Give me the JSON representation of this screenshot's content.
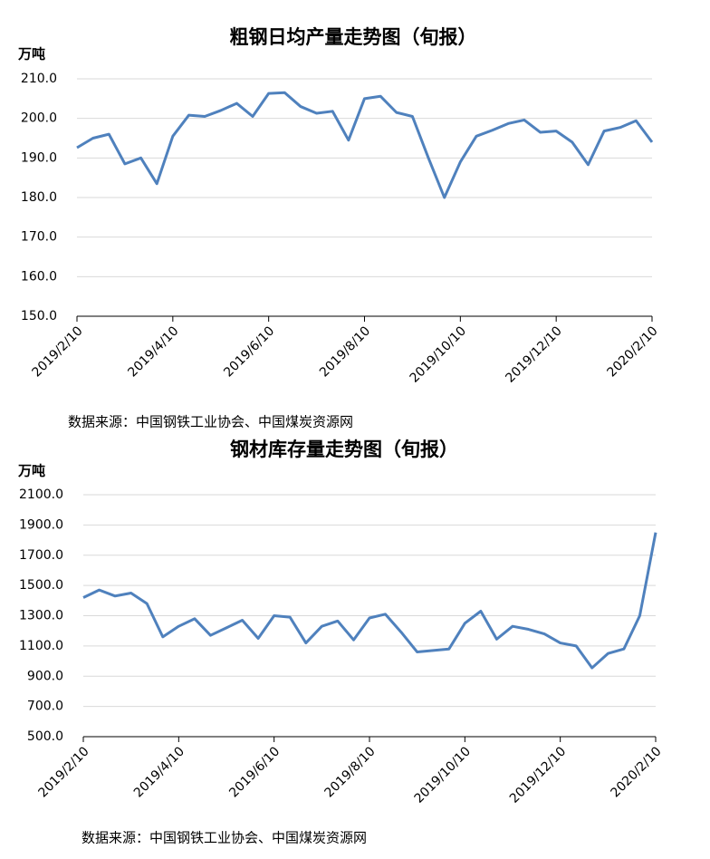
{
  "chart_data": [
    {
      "type": "line",
      "title": "粗钢日均产量走势图（旬报）",
      "y_label": "万吨",
      "source": "数据来源：中国钢铁工业协会、中国煤炭资源网",
      "categories": [
        "2019/2/10",
        null,
        null,
        null,
        null,
        null,
        "2019/4/10",
        null,
        null,
        null,
        null,
        null,
        "2019/6/10",
        null,
        null,
        null,
        null,
        null,
        "2019/8/10",
        null,
        null,
        null,
        null,
        null,
        "2019/10/10",
        null,
        null,
        null,
        null,
        null,
        "2019/12/10",
        null,
        null,
        null,
        null,
        null,
        "2020/2/10"
      ],
      "series": [
        {
          "color": "#4f81bd",
          "values": [
            192.6,
            195,
            196,
            188.5,
            190,
            183.5,
            195.5,
            200.8,
            200.5,
            202,
            203.8,
            200.5,
            206.3,
            206.5,
            203,
            201.3,
            201.8,
            194.5,
            205,
            205.6,
            201.5,
            200.5,
            190,
            180,
            189,
            195.5,
            197,
            198.7,
            199.6,
            196.5,
            196.8,
            194,
            188.3,
            196.8,
            197.7,
            199.4,
            194
          ]
        }
      ],
      "ylim": [
        150,
        210
      ],
      "yticks": [
        {
          "value": 150,
          "label": "150.0"
        },
        {
          "value": 160,
          "label": "160.0"
        },
        {
          "value": 170,
          "label": "170.0"
        },
        {
          "value": 180,
          "label": "180.0"
        },
        {
          "value": 190,
          "label": "190.0"
        },
        {
          "value": 200,
          "label": "200.0"
        },
        {
          "value": 210,
          "label": "210.0"
        }
      ],
      "grid": true
    },
    {
      "type": "line",
      "title": "钢材库存量走势图（旬报）",
      "y_label": "万吨",
      "source": "数据来源：中国钢铁工业协会、中国煤炭资源网",
      "categories": [
        "2019/2/10",
        null,
        null,
        null,
        null,
        null,
        "2019/4/10",
        null,
        null,
        null,
        null,
        null,
        "2019/6/10",
        null,
        null,
        null,
        null,
        null,
        "2019/8/10",
        null,
        null,
        null,
        null,
        null,
        "2019/10/10",
        null,
        null,
        null,
        null,
        null,
        "2019/12/10",
        null,
        null,
        null,
        null,
        null,
        "2020/2/10"
      ],
      "series": [
        {
          "color": "#4f81bd",
          "values": [
            1420,
            1470,
            1430,
            1450,
            1380,
            1160,
            1230,
            1280,
            1170,
            1220,
            1270,
            1150,
            1300,
            1290,
            1120,
            1230,
            1265,
            1140,
            1285,
            1310,
            1190,
            1060,
            1070,
            1080,
            1250,
            1330,
            1145,
            1230,
            1210,
            1180,
            1120,
            1100,
            955,
            1050,
            1080,
            1300,
            1850
          ]
        }
      ],
      "ylim": [
        500,
        2100
      ],
      "yticks": [
        {
          "value": 500,
          "label": "500.0"
        },
        {
          "value": 700,
          "label": "700.0"
        },
        {
          "value": 900,
          "label": "900.0"
        },
        {
          "value": 1100,
          "label": "1100.0"
        },
        {
          "value": 1300,
          "label": "1300.0"
        },
        {
          "value": 1500,
          "label": "1500.0"
        },
        {
          "value": 1700,
          "label": "1700.0"
        },
        {
          "value": 1900,
          "label": "1900.0"
        },
        {
          "value": 2100,
          "label": "2100.0"
        }
      ],
      "grid": true
    }
  ]
}
